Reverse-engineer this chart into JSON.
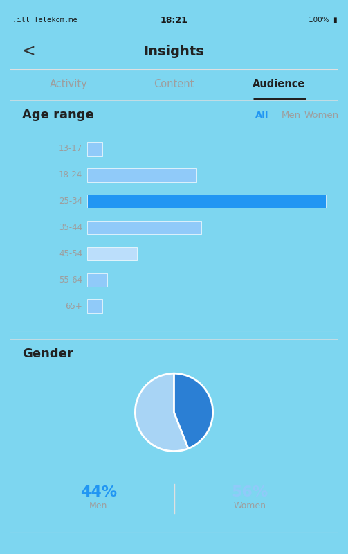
{
  "bg_color": "#7dd6f0",
  "panel_color": "#ffffff",
  "nav_title": "Insights",
  "tabs": [
    "Activity",
    "Content",
    "Audience"
  ],
  "active_tab": "Audience",
  "age_range_title": "Age range",
  "age_filter_labels": [
    "All",
    "Men",
    "Women"
  ],
  "age_filter_active": "All",
  "age_categories": [
    "13-17",
    "18-24",
    "25-34",
    "35-44",
    "45-54",
    "55-64",
    "65+"
  ],
  "age_values": [
    3,
    22,
    48,
    23,
    10,
    4,
    3
  ],
  "bar_color_highlight": "#2196F3",
  "bar_color_normal": "#90CAF9",
  "bar_color_light": "#BBDEFB",
  "highlighted_bar": "25-34",
  "gender_title": "Gender",
  "gender_labels": [
    "Men",
    "Women"
  ],
  "gender_values": [
    44,
    56
  ],
  "gender_colors": [
    "#2B7FD4",
    "#A8D4F5"
  ],
  "men_pct": "44%",
  "women_pct": "56%",
  "men_pct_color": "#2196F3",
  "women_pct_color": "#90CAF9",
  "label_color_blue_dark": "#2196F3",
  "label_color_blue_light": "#90CAF9",
  "label_color_gray": "#9E9E9E",
  "label_color_black": "#212121",
  "divider_color": "#E0E0E0",
  "fig_w": 5.03,
  "fig_h": 8.0,
  "dpi": 100
}
